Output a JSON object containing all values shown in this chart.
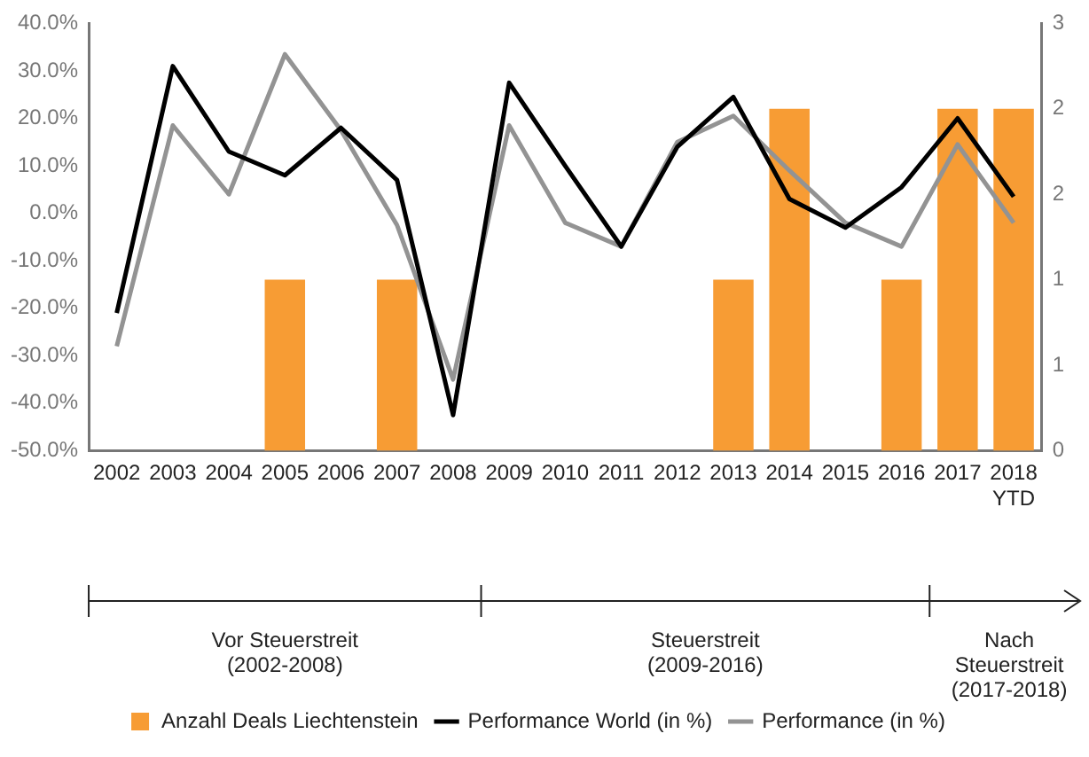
{
  "chart_data": {
    "type": "bar",
    "categories": [
      "2002",
      "2003",
      "2004",
      "2005",
      "2006",
      "2007",
      "2008",
      "2009",
      "2010",
      "2011",
      "2012",
      "2013",
      "2014",
      "2015",
      "2016",
      "2017",
      "2018\nYTD"
    ],
    "series": [
      {
        "name": "Anzahl Deals Liechtenstein",
        "axis": "y2",
        "color": "#f79c34",
        "values": [
          null,
          null,
          null,
          1,
          null,
          1,
          null,
          null,
          null,
          null,
          null,
          1,
          2,
          null,
          1,
          2,
          2
        ]
      },
      {
        "name": "Performance World (in %)",
        "type": "line",
        "color": "#000000",
        "values": [
          -21,
          31,
          13,
          8,
          18,
          7,
          -42.5,
          27.5,
          10,
          -7,
          14,
          24.5,
          3,
          -3,
          5.5,
          20,
          3.5
        ]
      },
      {
        "name": "Performance (in %)",
        "type": "line",
        "color": "#939393",
        "values": [
          -28,
          18.5,
          4,
          33.5,
          17.5,
          -2.5,
          -35,
          18.5,
          -2,
          -7,
          15,
          20.5,
          9,
          -2,
          -7,
          14.5,
          -2
        ]
      }
    ],
    "ylim": [
      -50,
      40
    ],
    "yticks": [
      {
        "value": -50,
        "label": "-50.0%"
      },
      {
        "value": -40,
        "label": "-40.0%"
      },
      {
        "value": -30,
        "label": "-30.0%"
      },
      {
        "value": -20,
        "label": "-20.0%"
      },
      {
        "value": -10,
        "label": "-10.0%"
      },
      {
        "value": 0,
        "label": "0.0%"
      },
      {
        "value": 10,
        "label": "10.0%"
      },
      {
        "value": 20,
        "label": "20.0%"
      },
      {
        "value": 30,
        "label": "30.0%"
      },
      {
        "value": 40,
        "label": "40.0%"
      }
    ],
    "y2lim": [
      0,
      2.5
    ],
    "y2ticks": [
      0,
      {
        "value": 0.5,
        "label": "1"
      },
      1,
      {
        "value": 1.5,
        "label": "2"
      },
      2,
      {
        "value": 2.5,
        "label": "3"
      }
    ],
    "annotations": [
      "Vor Steuerstreit\n(2002-2008)",
      "Steuerstreit\n(2009-2016)",
      "Nach\nSteuerstreit\n(2017-2018)"
    ],
    "grid": false,
    "legend": "bottom",
    "marker": "none",
    "line_style": "solid"
  }
}
